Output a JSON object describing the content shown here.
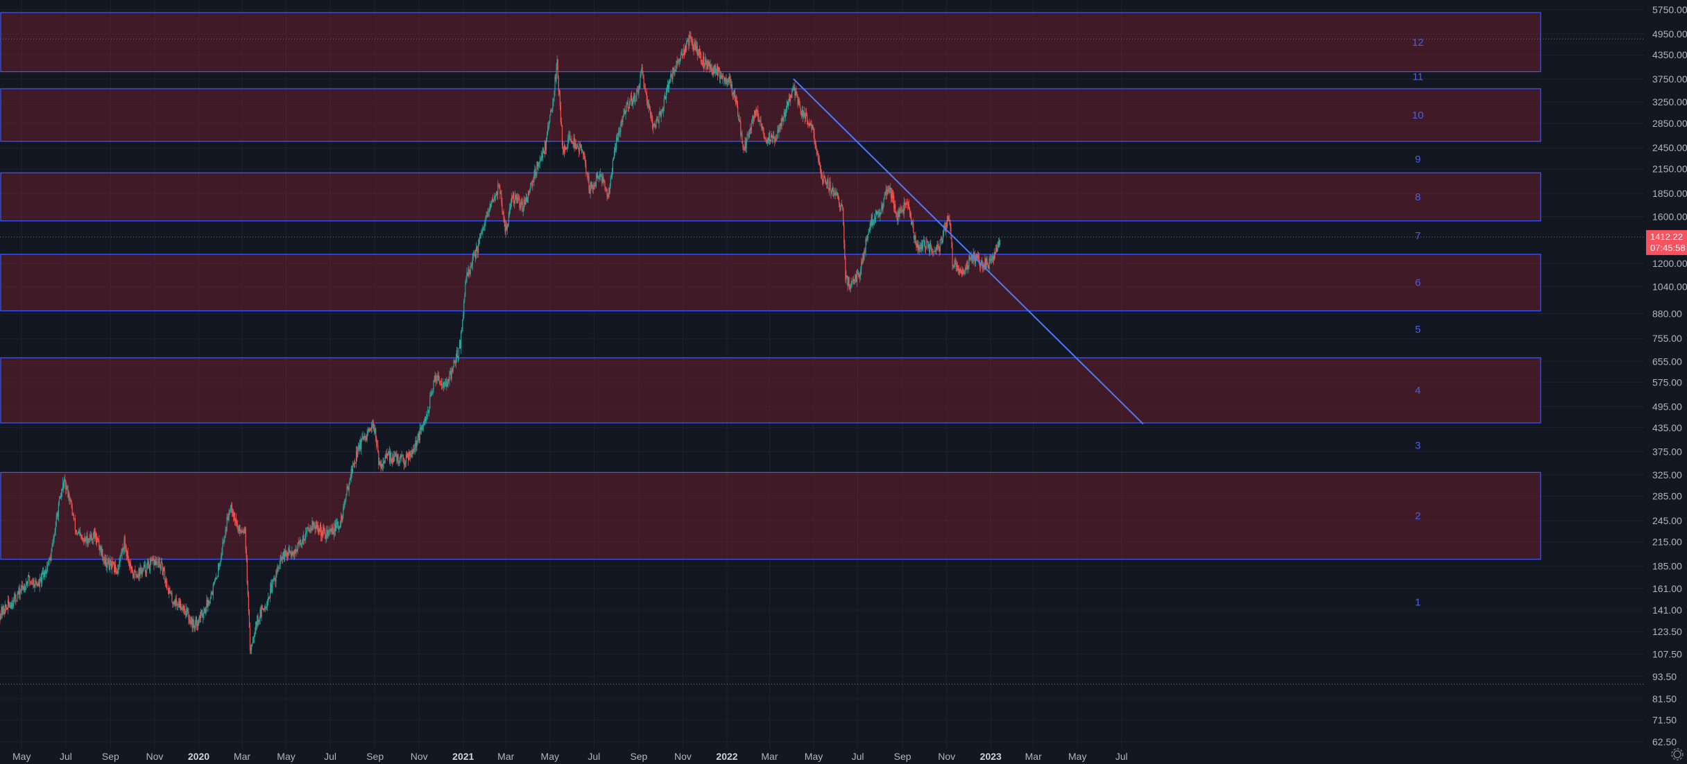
{
  "colors": {
    "background": "#131722",
    "grid": "#1e222d",
    "up": "#26a69a",
    "down": "#ef5350",
    "zone_fill": "rgba(120,30,45,0.45)",
    "zone_stroke": "#3d5afe",
    "trendline": "#4d7cfe",
    "price_tag": "#f7525f",
    "axis_text": "#b2b5be"
  },
  "chart_data": {
    "type": "candlestick",
    "title": "",
    "xlabel": "",
    "ylabel": "",
    "y_scale": "log",
    "ylim": [
      62.5,
      5750
    ],
    "xlim": [
      "2019-04-01",
      "2023-08-01"
    ],
    "grid": true,
    "y_ticks": [
      "5750.00",
      "4950.00",
      "4350.00",
      "3750.00",
      "3250.00",
      "2850.00",
      "2450.00",
      "2150.00",
      "1850.00",
      "1600.00",
      "1200.00",
      "1040.00",
      "880.00",
      "755.00",
      "655.00",
      "575.00",
      "495.00",
      "435.00",
      "375.00",
      "325.00",
      "285.00",
      "245.00",
      "215.00",
      "185.00",
      "161.00",
      "141.00",
      "123.50",
      "107.50",
      "93.50",
      "81.50",
      "71.50",
      "62.50"
    ],
    "x_ticks": [
      {
        "label": "May",
        "date": "2019-05-01",
        "year": false
      },
      {
        "label": "Jul",
        "date": "2019-07-01",
        "year": false
      },
      {
        "label": "Sep",
        "date": "2019-09-01",
        "year": false
      },
      {
        "label": "Nov",
        "date": "2019-11-01",
        "year": false
      },
      {
        "label": "2020",
        "date": "2020-01-01",
        "year": true
      },
      {
        "label": "Mar",
        "date": "2020-03-01",
        "year": false
      },
      {
        "label": "May",
        "date": "2020-05-01",
        "year": false
      },
      {
        "label": "Jul",
        "date": "2020-07-01",
        "year": false
      },
      {
        "label": "Sep",
        "date": "2020-09-01",
        "year": false
      },
      {
        "label": "Nov",
        "date": "2020-11-01",
        "year": false
      },
      {
        "label": "2021",
        "date": "2021-01-01",
        "year": true
      },
      {
        "label": "Mar",
        "date": "2021-03-01",
        "year": false
      },
      {
        "label": "May",
        "date": "2021-05-01",
        "year": false
      },
      {
        "label": "Jul",
        "date": "2021-07-01",
        "year": false
      },
      {
        "label": "Sep",
        "date": "2021-09-01",
        "year": false
      },
      {
        "label": "Nov",
        "date": "2021-11-01",
        "year": false
      },
      {
        "label": "2022",
        "date": "2022-01-01",
        "year": true
      },
      {
        "label": "Mar",
        "date": "2022-03-01",
        "year": false
      },
      {
        "label": "May",
        "date": "2022-05-01",
        "year": false
      },
      {
        "label": "Jul",
        "date": "2022-07-01",
        "year": false
      },
      {
        "label": "Sep",
        "date": "2022-09-01",
        "year": false
      },
      {
        "label": "Nov",
        "date": "2022-11-01",
        "year": false
      },
      {
        "label": "2023",
        "date": "2023-01-01",
        "year": true
      },
      {
        "label": "Mar",
        "date": "2023-03-01",
        "year": false
      },
      {
        "label": "May",
        "date": "2023-05-01",
        "year": false
      },
      {
        "label": "Jul",
        "date": "2023-07-01",
        "year": false
      }
    ],
    "price_path": [
      [
        "2019-04-01",
        138
      ],
      [
        "2019-04-20",
        150
      ],
      [
        "2019-05-10",
        170
      ],
      [
        "2019-05-25",
        165
      ],
      [
        "2019-06-10",
        195
      ],
      [
        "2019-06-20",
        260
      ],
      [
        "2019-06-28",
        310
      ],
      [
        "2019-07-05",
        290
      ],
      [
        "2019-07-15",
        230
      ],
      [
        "2019-07-25",
        215
      ],
      [
        "2019-08-10",
        225
      ],
      [
        "2019-08-25",
        190
      ],
      [
        "2019-09-10",
        180
      ],
      [
        "2019-09-20",
        215
      ],
      [
        "2019-10-01",
        175
      ],
      [
        "2019-10-15",
        180
      ],
      [
        "2019-11-01",
        190
      ],
      [
        "2019-11-10",
        185
      ],
      [
        "2019-11-25",
        150
      ],
      [
        "2019-12-10",
        145
      ],
      [
        "2019-12-25",
        128
      ],
      [
        "2020-01-10",
        142
      ],
      [
        "2020-01-25",
        170
      ],
      [
        "2020-02-05",
        220
      ],
      [
        "2020-02-14",
        275
      ],
      [
        "2020-02-25",
        230
      ],
      [
        "2020-03-05",
        235
      ],
      [
        "2020-03-12",
        110
      ],
      [
        "2020-03-20",
        130
      ],
      [
        "2020-04-05",
        150
      ],
      [
        "2020-04-25",
        195
      ],
      [
        "2020-05-15",
        205
      ],
      [
        "2020-06-05",
        240
      ],
      [
        "2020-06-25",
        225
      ],
      [
        "2020-07-15",
        240
      ],
      [
        "2020-07-28",
        320
      ],
      [
        "2020-08-10",
        390
      ],
      [
        "2020-08-20",
        410
      ],
      [
        "2020-09-01",
        440
      ],
      [
        "2020-09-06",
        345
      ],
      [
        "2020-09-20",
        365
      ],
      [
        "2020-10-10",
        355
      ],
      [
        "2020-10-25",
        385
      ],
      [
        "2020-11-10",
        455
      ],
      [
        "2020-11-24",
        600
      ],
      [
        "2020-12-10",
        565
      ],
      [
        "2020-12-28",
        730
      ],
      [
        "2021-01-05",
        1100
      ],
      [
        "2021-01-20",
        1300
      ],
      [
        "2021-02-05",
        1650
      ],
      [
        "2021-02-20",
        1950
      ],
      [
        "2021-02-28",
        1450
      ],
      [
        "2021-03-10",
        1800
      ],
      [
        "2021-03-25",
        1700
      ],
      [
        "2021-04-10",
        2100
      ],
      [
        "2021-04-25",
        2500
      ],
      [
        "2021-05-05",
        3300
      ],
      [
        "2021-05-11",
        4100
      ],
      [
        "2021-05-19",
        2400
      ],
      [
        "2021-05-28",
        2600
      ],
      [
        "2021-06-15",
        2400
      ],
      [
        "2021-06-25",
        1900
      ],
      [
        "2021-07-10",
        2100
      ],
      [
        "2021-07-20",
        1800
      ],
      [
        "2021-07-31",
        2500
      ],
      [
        "2021-08-15",
        3200
      ],
      [
        "2021-08-31",
        3400
      ],
      [
        "2021-09-05",
        3900
      ],
      [
        "2021-09-21",
        2800
      ],
      [
        "2021-10-01",
        3000
      ],
      [
        "2021-10-15",
        3800
      ],
      [
        "2021-10-30",
        4300
      ],
      [
        "2021-11-10",
        4800
      ],
      [
        "2021-11-25",
        4300
      ],
      [
        "2021-12-04",
        4100
      ],
      [
        "2021-12-20",
        3900
      ],
      [
        "2022-01-05",
        3700
      ],
      [
        "2022-01-15",
        3200
      ],
      [
        "2022-01-24",
        2400
      ],
      [
        "2022-02-10",
        3100
      ],
      [
        "2022-02-24",
        2600
      ],
      [
        "2022-03-10",
        2600
      ],
      [
        "2022-03-25",
        3200
      ],
      [
        "2022-04-03",
        3500
      ],
      [
        "2022-04-15",
        3050
      ],
      [
        "2022-04-30",
        2800
      ],
      [
        "2022-05-10",
        2100
      ],
      [
        "2022-05-25",
        1900
      ],
      [
        "2022-06-10",
        1700
      ],
      [
        "2022-06-14",
        1100
      ],
      [
        "2022-06-20",
        1050
      ],
      [
        "2022-07-05",
        1150
      ],
      [
        "2022-07-18",
        1550
      ],
      [
        "2022-08-01",
        1650
      ],
      [
        "2022-08-13",
        1950
      ],
      [
        "2022-08-25",
        1600
      ],
      [
        "2022-09-08",
        1750
      ],
      [
        "2022-09-20",
        1350
      ],
      [
        "2022-10-05",
        1330
      ],
      [
        "2022-10-20",
        1300
      ],
      [
        "2022-11-01",
        1550
      ],
      [
        "2022-11-05",
        1600
      ],
      [
        "2022-11-09",
        1200
      ],
      [
        "2022-11-22",
        1120
      ],
      [
        "2022-12-05",
        1250
      ],
      [
        "2022-12-20",
        1200
      ],
      [
        "2022-12-31",
        1200
      ],
      [
        "2023-01-08",
        1280
      ],
      [
        "2023-01-14",
        1412
      ]
    ],
    "zones": [
      {
        "label": "2",
        "y_low": 193,
        "y_high": 330
      },
      {
        "label": "4",
        "y_low": 448,
        "y_high": 670
      },
      {
        "label": "6",
        "y_low": 895,
        "y_high": 1270
      },
      {
        "label": "8",
        "y_low": 1560,
        "y_high": 2100
      },
      {
        "label": "10",
        "y_low": 2550,
        "y_high": 3530
      },
      {
        "label": "12",
        "y_low": 3920,
        "y_high": 5650
      }
    ],
    "zone_labels": [
      {
        "label": "1",
        "y": 148
      },
      {
        "label": "3",
        "y": 390
      },
      {
        "label": "5",
        "y": 798
      },
      {
        "label": "7",
        "y": 1425
      },
      {
        "label": "9",
        "y": 2285
      },
      {
        "label": "11",
        "y": 3800
      }
    ],
    "trendline": [
      [
        "2022-04-03",
        3750
      ],
      [
        "2023-07-31",
        445
      ]
    ],
    "dotted_levels": [
      1412.22,
      4800,
      89.2
    ],
    "last_price": {
      "value": "1412.22",
      "countdown": "07:45:58",
      "y": 1412.22
    }
  }
}
